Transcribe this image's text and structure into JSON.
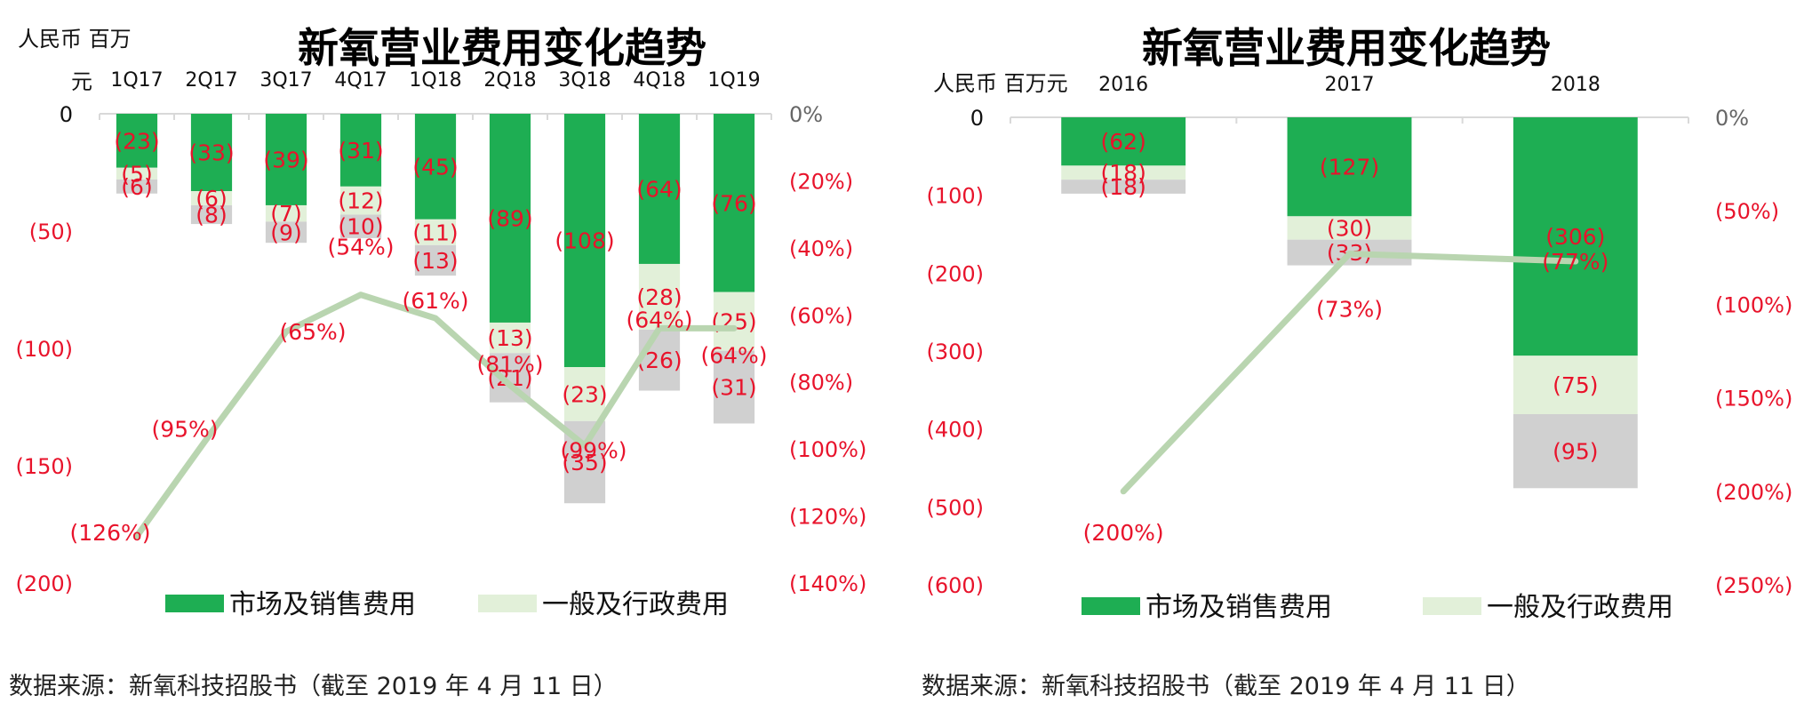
{
  "source_note": "数据来源：新氧科技招股书（截至 2019 年 4 月 11 日）",
  "colors": {
    "sales": "#1eae53",
    "admin": "#e2f0d9",
    "other": "#d0d0d0",
    "line": "#b9d5b0",
    "negative_text": "#e8132b",
    "axis": "#d9d9d9",
    "text": "#111111"
  },
  "chart_data": [
    {
      "type": "bar",
      "stacked": true,
      "title": "新氧营业费用变化趋势",
      "unit_label": "人民币 百万元",
      "categories": [
        "1Q17",
        "2Q17",
        "3Q17",
        "4Q17",
        "1Q18",
        "2Q18",
        "3Q18",
        "4Q18",
        "1Q19"
      ],
      "y_left": {
        "ticks": [
          "0",
          "(50)",
          "(100)",
          "(150)",
          "(200)"
        ],
        "range": [
          -200,
          0
        ]
      },
      "y_right": {
        "ticks": [
          "0%",
          "(20%)",
          "(40%)",
          "(60%)",
          "(80%)",
          "(100%)",
          "(120%)",
          "(140%)"
        ],
        "range": [
          -140,
          0
        ]
      },
      "series": [
        {
          "name": "市场及销售费用",
          "key": "sales",
          "values": [
            -23,
            -33,
            -39,
            -31,
            -45,
            -89,
            -108,
            -64,
            -76
          ],
          "labels": [
            "(23)",
            "(33)",
            "(39)",
            "(31)",
            "(45)",
            "(89)",
            "(108)",
            "(64)",
            "(76)"
          ]
        },
        {
          "name": "一般及行政费用",
          "key": "admin",
          "values": [
            -5,
            -6,
            -7,
            -12,
            -11,
            -13,
            -23,
            -28,
            -25
          ],
          "labels": [
            "(5)",
            "(6)",
            "(7)",
            "(12)",
            "(11)",
            "(13)",
            "(23)",
            "(28)",
            "(25)"
          ]
        },
        {
          "key": "other",
          "values": [
            -6,
            -8,
            -9,
            -10,
            -13,
            -21,
            -35,
            -26,
            -31
          ],
          "labels": [
            "(6)",
            "(8)",
            "(9)",
            "(10)",
            "(13)",
            "(21)",
            "(35)",
            "(26)",
            "(31)"
          ]
        },
        {
          "type": "line",
          "axis": "right",
          "key": "ratio",
          "values": [
            -126,
            -95,
            -65,
            -54,
            -61,
            -81,
            -99,
            -64,
            -64
          ],
          "labels": [
            "(126%)",
            "(95%)",
            "(65%)",
            "(54%)",
            "(61%)",
            "(81%)",
            "(99%)",
            "(64%)",
            "(64%)"
          ]
        }
      ],
      "legend": [
        "市场及销售费用",
        "一般及行政费用"
      ],
      "legend_position": "bottom"
    },
    {
      "type": "bar",
      "stacked": true,
      "title": "新氧营业费用变化趋势",
      "unit_label": "人民币 百万元",
      "categories": [
        "2016",
        "2017",
        "2018"
      ],
      "y_left": {
        "ticks": [
          "0",
          "(100)",
          "(200)",
          "(300)",
          "(400)",
          "(500)",
          "(600)"
        ],
        "range": [
          -600,
          0
        ]
      },
      "y_right": {
        "ticks": [
          "0%",
          "(50%)",
          "(100%)",
          "(150%)",
          "(200%)",
          "(250%)"
        ],
        "range": [
          -250,
          0
        ]
      },
      "series": [
        {
          "name": "市场及销售费用",
          "key": "sales",
          "values": [
            -62,
            -127,
            -306
          ],
          "labels": [
            "(62)",
            "(127)",
            "(306)"
          ]
        },
        {
          "name": "一般及行政费用",
          "key": "admin",
          "values": [
            -18,
            -30,
            -75
          ],
          "labels": [
            "(18)",
            "(30)",
            "(75)"
          ]
        },
        {
          "key": "other",
          "values": [
            -18,
            -33,
            -95
          ],
          "labels": [
            "(18)",
            "(33)",
            "(95)"
          ]
        },
        {
          "type": "line",
          "axis": "right",
          "key": "ratio",
          "values": [
            -200,
            -73,
            -77
          ],
          "labels": [
            "(200%)",
            "(73%)",
            "(77%)"
          ]
        }
      ],
      "legend": [
        "市场及销售费用",
        "一般及行政费用"
      ],
      "legend_position": "bottom"
    }
  ]
}
